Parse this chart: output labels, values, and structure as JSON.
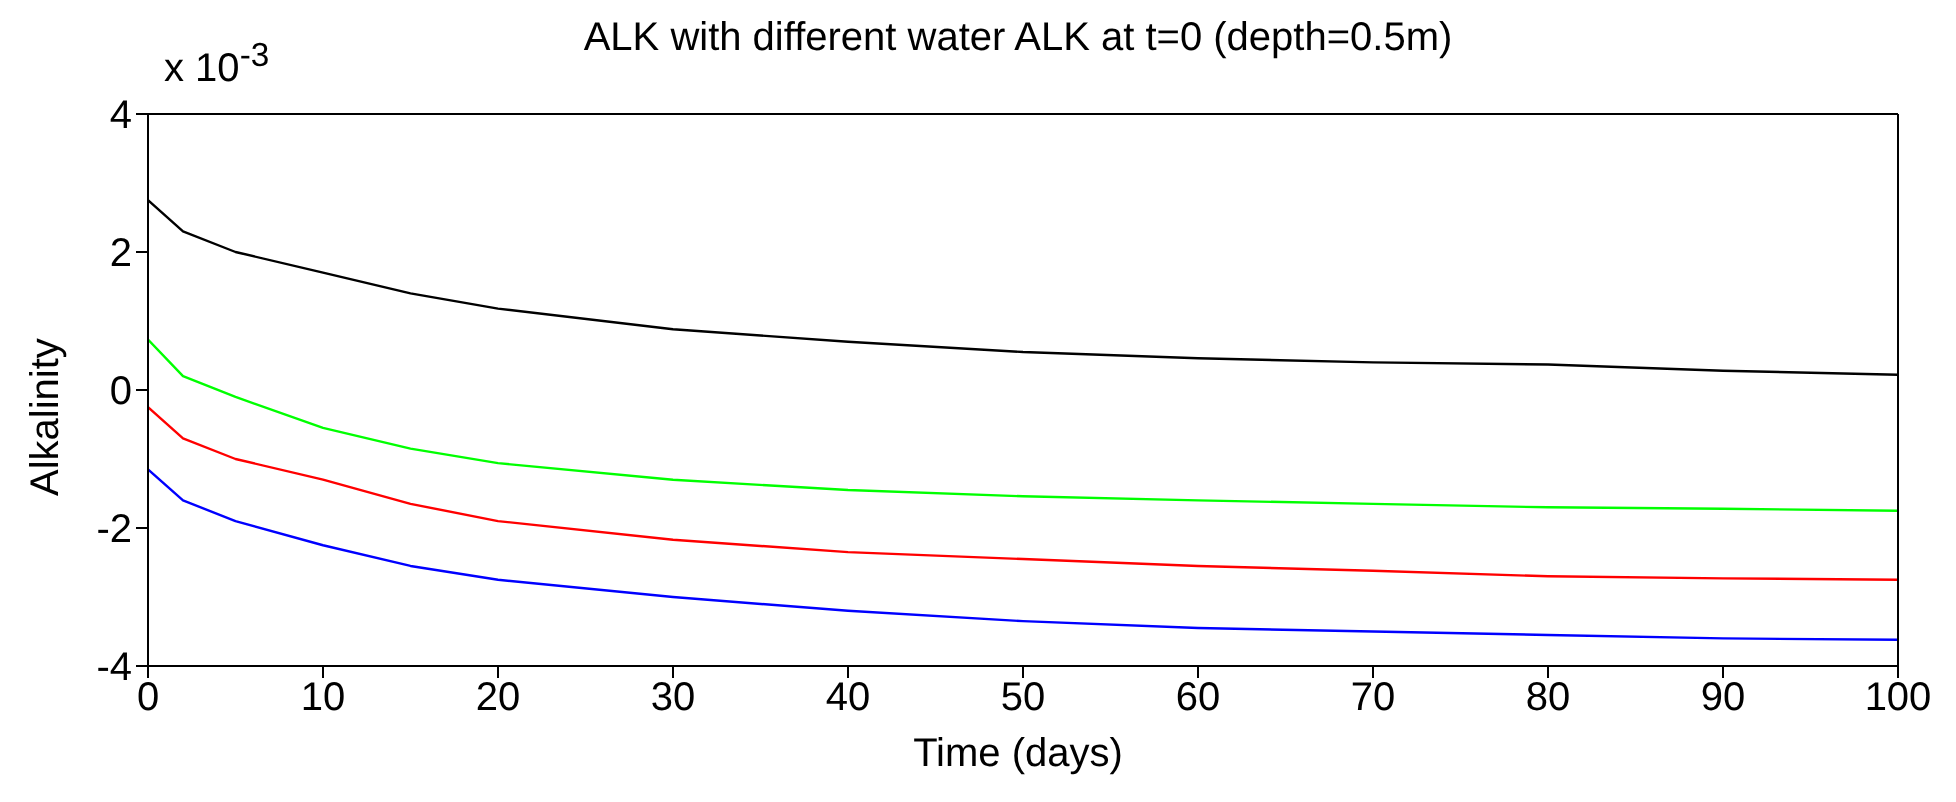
{
  "chart_data": {
    "type": "line",
    "title": "ALK with different water ALK at t=0 (depth=0.5m)",
    "xlabel": "Time (days)",
    "ylabel": "Alkalinity",
    "annotations": [
      "x 10$^{-3}$"
    ],
    "x": [
      0,
      2,
      5,
      10,
      15,
      20,
      30,
      40,
      50,
      60,
      70,
      80,
      90,
      100
    ],
    "series": [
      {
        "color": "#000000",
        "values": [
          2.75,
          2.3,
          2.0,
          1.7,
          1.4,
          1.18,
          0.88,
          0.7,
          0.55,
          0.46,
          0.4,
          0.37,
          0.28,
          0.22
        ]
      },
      {
        "color": "#00ff00",
        "values": [
          0.73,
          0.2,
          -0.1,
          -0.55,
          -0.85,
          -1.06,
          -1.3,
          -1.45,
          -1.54,
          -1.6,
          -1.65,
          -1.7,
          -1.72,
          -1.75
        ]
      },
      {
        "color": "#ff0000",
        "values": [
          -0.25,
          -0.7,
          -1.0,
          -1.3,
          -1.65,
          -1.9,
          -2.17,
          -2.35,
          -2.45,
          -2.55,
          -2.62,
          -2.7,
          -2.73,
          -2.75
        ]
      },
      {
        "color": "#0000ff",
        "values": [
          -1.15,
          -1.6,
          -1.9,
          -2.25,
          -2.55,
          -2.75,
          -3.0,
          -3.2,
          -3.35,
          -3.45,
          -3.5,
          -3.55,
          -3.6,
          -3.62
        ]
      }
    ],
    "xlim": [
      0,
      100
    ],
    "xticks": [
      0,
      10,
      20,
      30,
      40,
      50,
      60,
      70,
      80,
      90,
      100
    ],
    "ylim": [
      -4,
      4
    ],
    "yticks": [
      -4,
      -2,
      0,
      2,
      4
    ],
    "grid": false,
    "marker": "none",
    "line_style": "solid"
  }
}
